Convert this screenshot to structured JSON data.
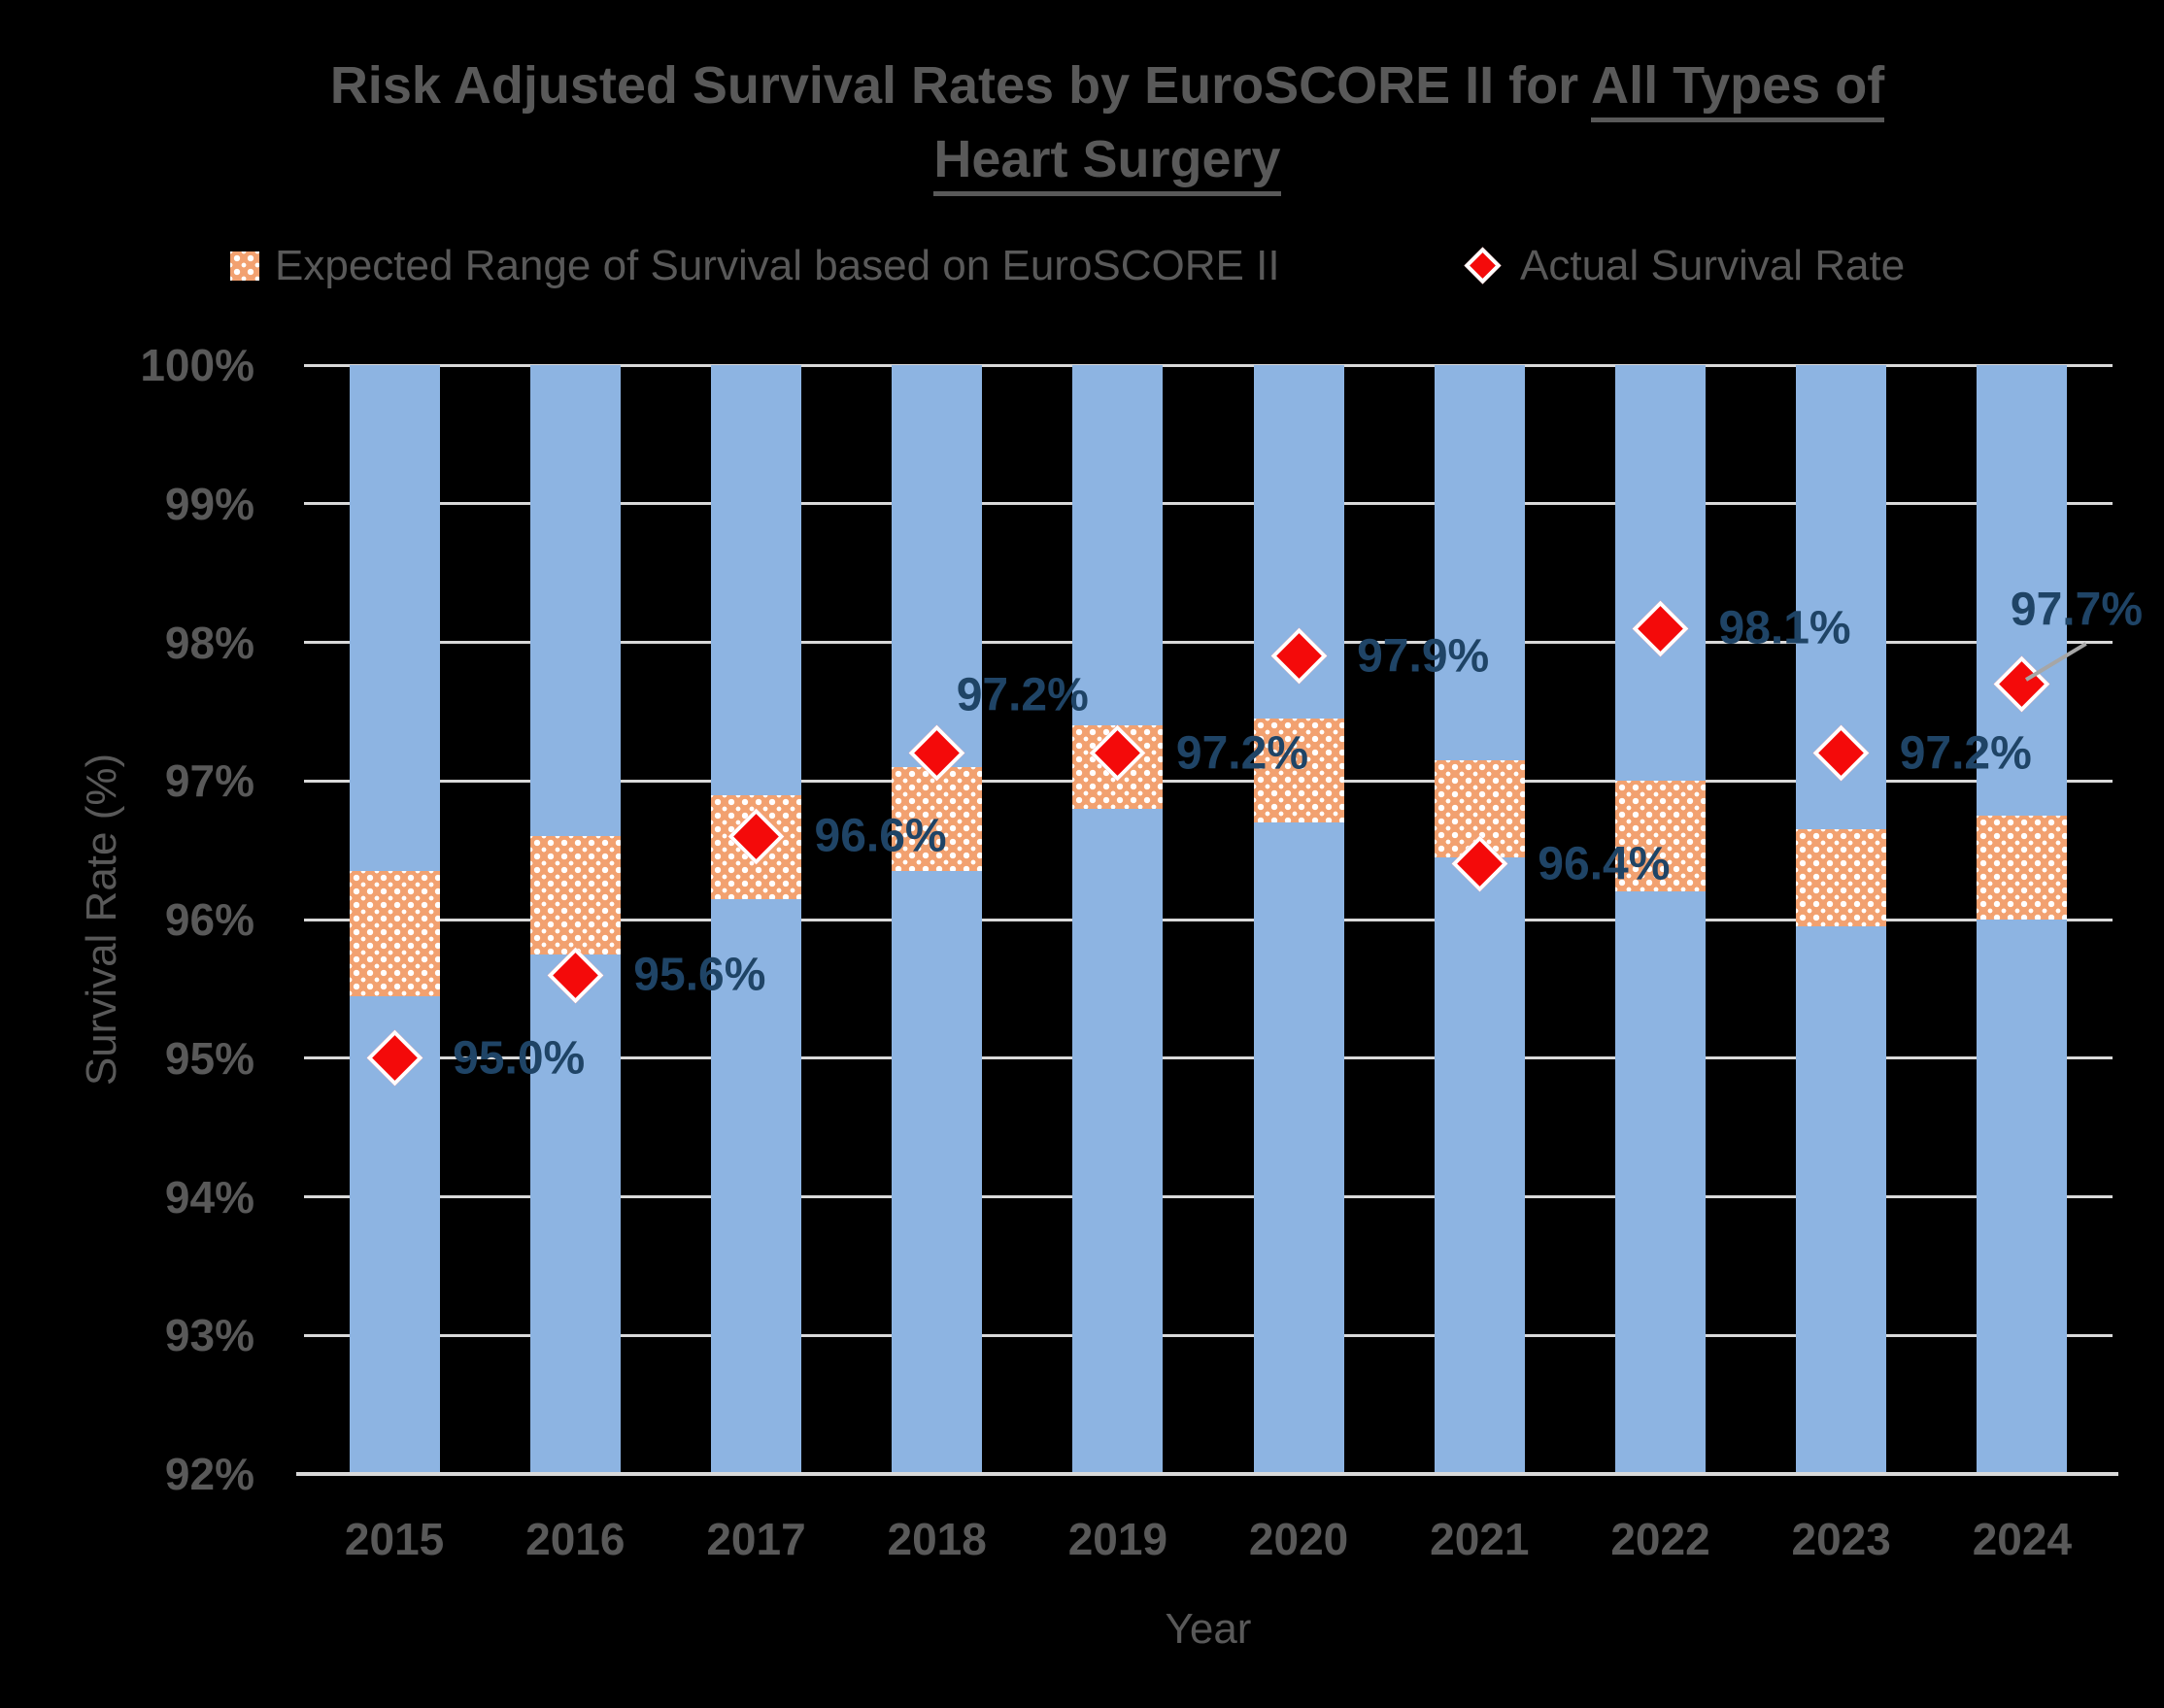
{
  "title": {
    "line1_prefix": "Risk Adjusted Survival Rates by EuroSCORE II for ",
    "line1_underline": "All Types of",
    "line2_underline": "Heart Surgery"
  },
  "legend": {
    "items": [
      {
        "label": "Expected Range of Survival based on EuroSCORE II",
        "swatch": "orange-checker-pattern"
      },
      {
        "label": "Actual Survival Rate",
        "swatch": "red-diamond"
      }
    ]
  },
  "y_axis": {
    "title": "Survival Rate (%)",
    "tick_labels": [
      "100%",
      "99%",
      "98%",
      "97%",
      "96%",
      "95%",
      "94%",
      "93%",
      "92%"
    ]
  },
  "x_axis": {
    "title": "Year"
  },
  "chart_data": {
    "type": "combo-range-bar-scatter",
    "title": "Risk Adjusted Survival Rates by EuroSCORE II for All Types of Heart Surgery",
    "xlabel": "Year",
    "ylabel": "Survival Rate (%)",
    "ylim": [
      92,
      100
    ],
    "ytick_step": 1,
    "grid": "horizontal",
    "legend_position": "top",
    "categories": [
      "2015",
      "2016",
      "2017",
      "2018",
      "2019",
      "2020",
      "2021",
      "2022",
      "2023",
      "2024"
    ],
    "background_columns": {
      "from": 92,
      "to": 100,
      "note": "full-height light blue column per year"
    },
    "series": [
      {
        "name": "Expected Range of Survival based on EuroSCORE II",
        "type": "range-band",
        "low": [
          95.45,
          95.75,
          96.15,
          96.35,
          96.8,
          96.7,
          96.45,
          96.2,
          95.95,
          96.0
        ],
        "high": [
          96.35,
          96.6,
          96.9,
          97.1,
          97.4,
          97.45,
          97.15,
          97.0,
          96.65,
          96.75
        ]
      },
      {
        "name": "Actual Survival Rate",
        "type": "scatter",
        "marker": "diamond",
        "values": [
          95.0,
          95.6,
          96.6,
          97.2,
          97.2,
          97.9,
          96.4,
          98.1,
          97.2,
          97.7
        ],
        "labels": [
          "95.0%",
          "95.6%",
          "96.6%",
          "97.2%",
          "97.2%",
          "97.9%",
          "96.4%",
          "98.1%",
          "97.2%",
          "97.7%"
        ],
        "label_pos": [
          "right",
          "right",
          "right",
          "upper-right",
          "right",
          "right",
          "right",
          "right",
          "right",
          "above-leader"
        ]
      }
    ],
    "colors": {
      "background": "#000000",
      "column_blue": "#8DB4E2",
      "expected_pattern_orange": "#F2A170",
      "actual_red": "#F40A0A",
      "data_label_navy": "#1F4466",
      "gridline_gray": "#D9D9D9",
      "axis_text_gray": "#595959",
      "leader_line_gray": "#A6A6A6"
    }
  }
}
